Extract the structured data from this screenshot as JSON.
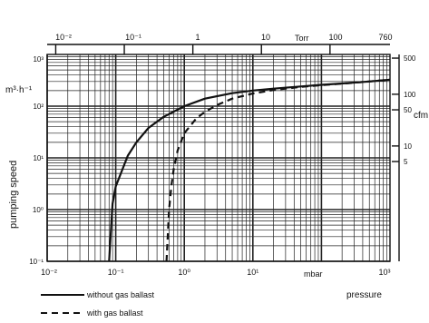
{
  "chart_data": {
    "type": "line",
    "y_axis_left": {
      "label": "pumping speed",
      "unit": "m³·h⁻¹",
      "scale": "log",
      "range": [
        0.1,
        1000
      ],
      "tick_labels": [
        "10⁻¹",
        "10⁰",
        "10¹",
        "10²"
      ]
    },
    "y_axis_right": {
      "unit": "cfm",
      "tick_labels": [
        "500",
        "100",
        "50",
        "10",
        "5"
      ]
    },
    "x_axis_bottom": {
      "label": "pressure",
      "unit": "mbar",
      "scale": "log",
      "range": [
        0.01,
        1000
      ],
      "tick_labels": [
        "10⁻²",
        "10⁻¹",
        "10⁰",
        "10¹",
        "10³"
      ]
    },
    "x_axis_top": {
      "unit": "Torr",
      "tick_labels": [
        "10⁻²",
        "10⁻¹",
        "1",
        "10",
        "100",
        "760"
      ]
    },
    "series": [
      {
        "name": "without gas ballast",
        "style": "solid",
        "x": [
          0.08,
          0.09,
          0.1,
          0.15,
          0.2,
          0.3,
          0.5,
          1,
          2,
          5,
          10,
          20,
          50,
          100,
          200,
          500,
          1000
        ],
        "y": [
          0.1,
          1.3,
          2.8,
          11,
          20,
          38,
          62,
          100,
          140,
          178,
          200,
          218,
          240,
          258,
          275,
          300,
          325
        ]
      },
      {
        "name": "with gas ballast",
        "style": "dashed",
        "x": [
          0.55,
          0.6,
          0.65,
          0.7,
          0.8,
          1,
          1.5,
          2,
          3,
          5,
          10,
          20,
          50,
          100,
          200,
          500,
          1000
        ],
        "y": [
          0.1,
          1.0,
          3.0,
          6.0,
          14,
          30,
          58,
          78,
          105,
          140,
          175,
          205,
          235,
          255,
          272,
          300,
          325
        ]
      }
    ],
    "legend": {
      "placement": "bottom-left",
      "entries": [
        "without gas ballast",
        "with gas ballast"
      ]
    },
    "grid": true
  },
  "colors": {
    "line": "#111111",
    "background": "#ffffff",
    "grid": "#222222"
  }
}
